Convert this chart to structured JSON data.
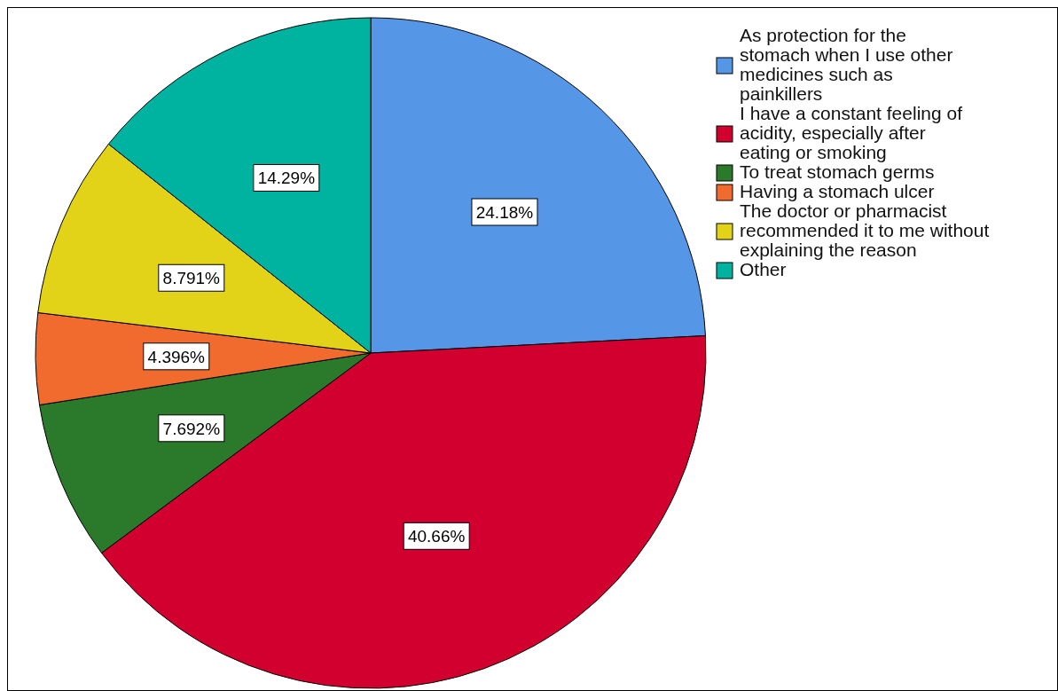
{
  "chart_data": {
    "type": "pie",
    "categories": [
      "As protection for the stomach when I use other medicines such as painkillers",
      "I have a constant feeling of acidity, especially after eating or smoking",
      "To treat stomach germs",
      "Having a stomach ulcer",
      "The doctor or pharmacist recommended it to me without explaining the reason",
      "Other"
    ],
    "values": [
      24.18,
      40.66,
      7.692,
      4.396,
      8.791,
      14.29
    ],
    "value_labels": [
      "24.18%",
      "40.66%",
      "7.692%",
      "4.396%",
      "8.791%",
      "14.29%"
    ],
    "colors": [
      "#5596e6",
      "#d1002f",
      "#2b7a2b",
      "#f26b2e",
      "#e3d318",
      "#00b3a0"
    ],
    "legend": "top right"
  }
}
